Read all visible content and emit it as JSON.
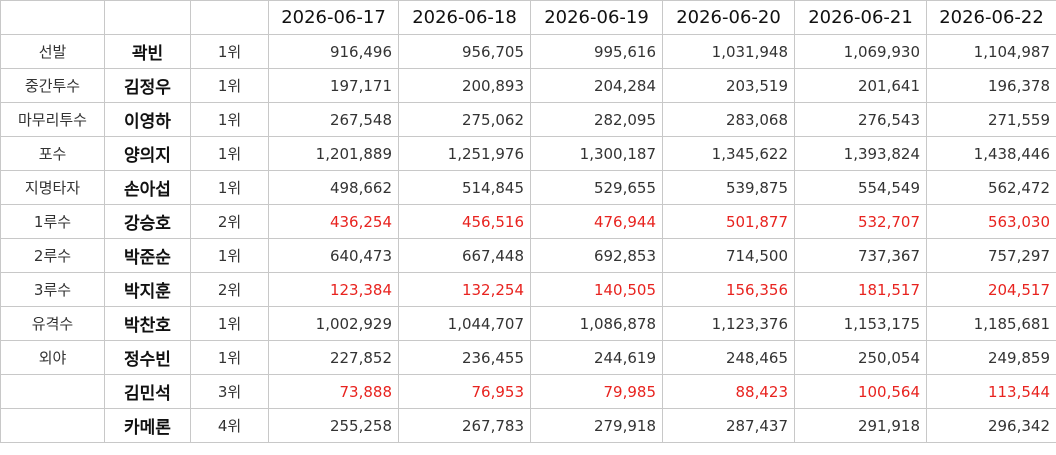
{
  "table": {
    "columns": [
      "2026-06-17",
      "2026-06-18",
      "2026-06-19",
      "2026-06-20",
      "2026-06-21",
      "2026-06-22"
    ],
    "rows": [
      {
        "position": "선발",
        "name": "곽빈",
        "rank": "1위",
        "values": [
          "916,496",
          "956,705",
          "995,616",
          "1,031,948",
          "1,069,930",
          "1,104,987"
        ],
        "color": "#333333"
      },
      {
        "position": "중간투수",
        "name": "김정우",
        "rank": "1위",
        "values": [
          "197,171",
          "200,893",
          "204,284",
          "203,519",
          "201,641",
          "196,378"
        ],
        "color": "#333333"
      },
      {
        "position": "마무리투수",
        "name": "이영하",
        "rank": "1위",
        "values": [
          "267,548",
          "275,062",
          "282,095",
          "283,068",
          "276,543",
          "271,559"
        ],
        "color": "#333333"
      },
      {
        "position": "포수",
        "name": "양의지",
        "rank": "1위",
        "values": [
          "1,201,889",
          "1,251,976",
          "1,300,187",
          "1,345,622",
          "1,393,824",
          "1,438,446"
        ],
        "color": "#333333"
      },
      {
        "position": "지명타자",
        "name": "손아섭",
        "rank": "1위",
        "values": [
          "498,662",
          "514,845",
          "529,655",
          "539,875",
          "554,549",
          "562,472"
        ],
        "color": "#333333"
      },
      {
        "position": "1루수",
        "name": "강승호",
        "rank": "2위",
        "values": [
          "436,254",
          "456,516",
          "476,944",
          "501,877",
          "532,707",
          "563,030"
        ],
        "color": "#e8231f"
      },
      {
        "position": "2루수",
        "name": "박준순",
        "rank": "1위",
        "values": [
          "640,473",
          "667,448",
          "692,853",
          "714,500",
          "737,367",
          "757,297"
        ],
        "color": "#333333"
      },
      {
        "position": "3루수",
        "name": "박지훈",
        "rank": "2위",
        "values": [
          "123,384",
          "132,254",
          "140,505",
          "156,356",
          "181,517",
          "204,517"
        ],
        "color": "#e8231f"
      },
      {
        "position": "유격수",
        "name": "박찬호",
        "rank": "1위",
        "values": [
          "1,002,929",
          "1,044,707",
          "1,086,878",
          "1,123,376",
          "1,153,175",
          "1,185,681"
        ],
        "color": "#333333"
      },
      {
        "position": "외야",
        "name": "정수빈",
        "rank": "1위",
        "values": [
          "227,852",
          "236,455",
          "244,619",
          "248,465",
          "250,054",
          "249,859"
        ],
        "color": "#333333"
      },
      {
        "position": null,
        "name": "김민석",
        "rank": "3위",
        "values": [
          "73,888",
          "76,953",
          "79,985",
          "88,423",
          "100,564",
          "113,544"
        ],
        "color": "#e8231f"
      },
      {
        "position": null,
        "name": "카메론",
        "rank": "4위",
        "values": [
          "255,258",
          "267,783",
          "279,918",
          "287,437",
          "291,918",
          "296,342"
        ],
        "color": "#333333"
      }
    ]
  }
}
